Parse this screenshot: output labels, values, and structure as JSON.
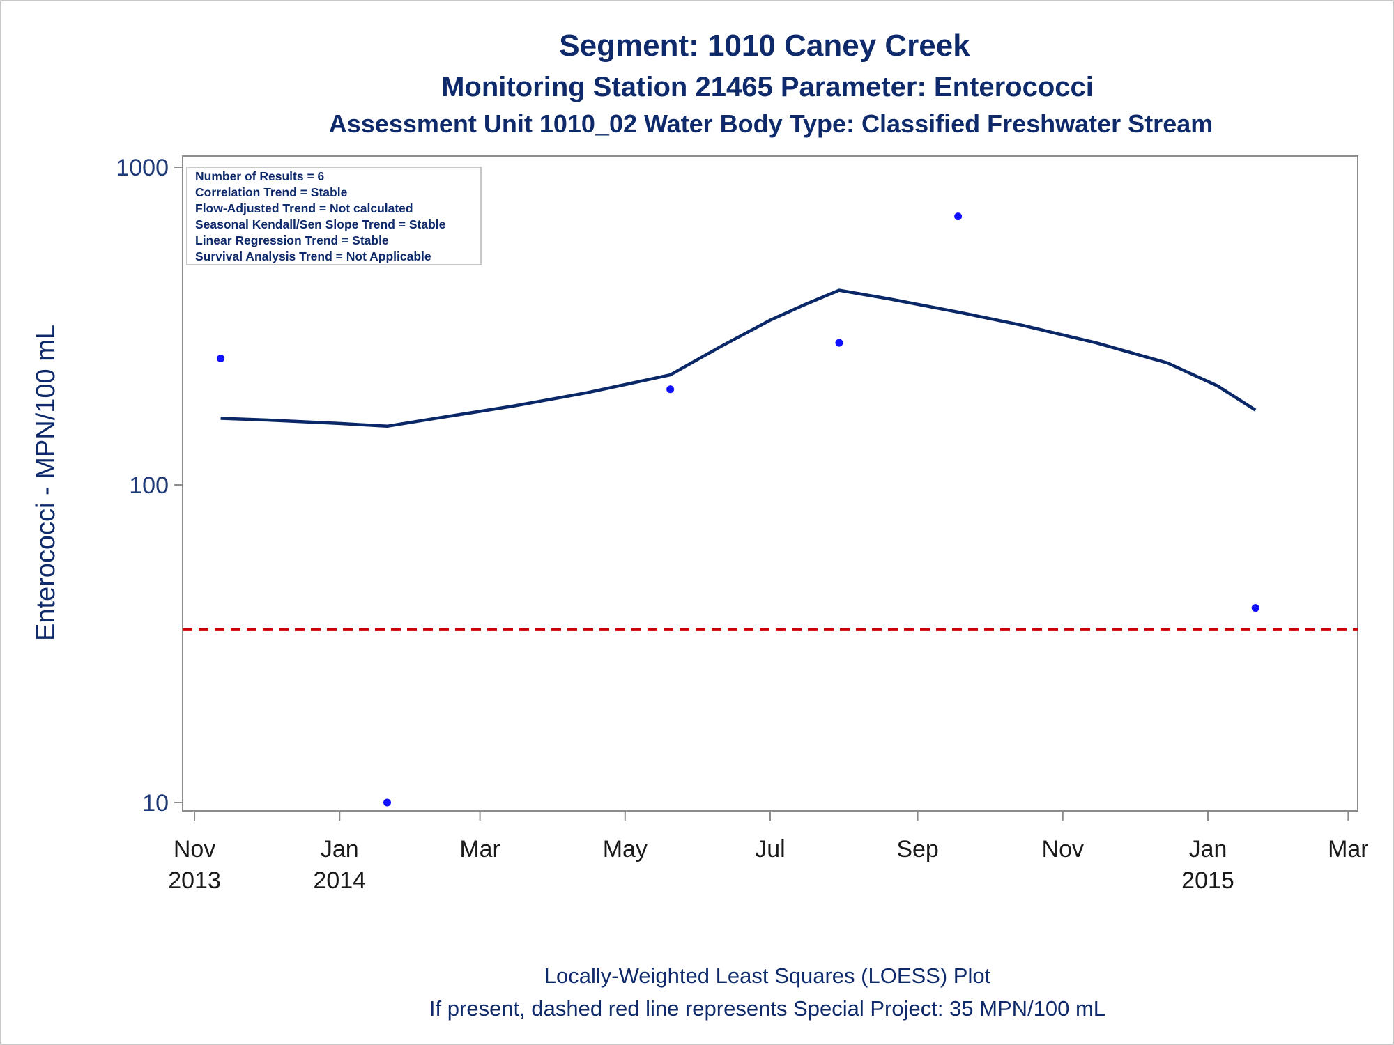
{
  "titles": [
    "Segment: 1010  Caney Creek",
    "Monitoring Station 21465 Parameter: Enterococci",
    "Assessment Unit 1010_02   Water Body Type: Classified Freshwater Stream"
  ],
  "stats_box": [
    "Number of Results = 6",
    "Correlation Trend = Stable",
    "Flow-Adjusted Trend = Not calculated",
    "Seasonal Kendall/Sen Slope Trend = Stable",
    "Linear Regression Trend = Stable",
    "Survival Analysis Trend = Not Applicable"
  ],
  "footnotes": [
    "Locally-Weighted Least Squares (LOESS) Plot",
    "If present, dashed red line represents Special Project: 35 MPN/100 mL"
  ],
  "colors": {
    "title": "#0f2a6b",
    "points": "#1010ff",
    "loess": "#0a2868",
    "reference": "#cc0000",
    "frame": "#8c8c8c"
  },
  "chart_data": {
    "type": "scatter",
    "ylabel": "Enterococci - MPN/100 mL",
    "yscale": "log",
    "ylim": [
      10,
      1000
    ],
    "yticks": [
      10,
      100,
      1000
    ],
    "xlim": [
      "2013-10-27",
      "2015-03-05"
    ],
    "xticks": [
      {
        "date": "2013-11-01",
        "label": [
          "Nov",
          "2013"
        ]
      },
      {
        "date": "2014-01-01",
        "label": [
          "Jan",
          "2014"
        ]
      },
      {
        "date": "2014-03-01",
        "label": [
          "Mar"
        ]
      },
      {
        "date": "2014-05-01",
        "label": [
          "May"
        ]
      },
      {
        "date": "2014-07-01",
        "label": [
          "Jul"
        ]
      },
      {
        "date": "2014-09-01",
        "label": [
          "Sep"
        ]
      },
      {
        "date": "2014-11-01",
        "label": [
          "Nov"
        ]
      },
      {
        "date": "2015-01-01",
        "label": [
          "Jan",
          "2015"
        ]
      },
      {
        "date": "2015-03-01",
        "label": [
          "Mar"
        ]
      }
    ],
    "points": [
      {
        "x": "2013-11-12",
        "y": 250
      },
      {
        "x": "2014-01-21",
        "y": 10
      },
      {
        "x": "2014-05-20",
        "y": 200
      },
      {
        "x": "2014-07-30",
        "y": 280
      },
      {
        "x": "2014-09-18",
        "y": 700
      },
      {
        "x": "2015-01-21",
        "y": 41
      }
    ],
    "loess": [
      {
        "x": "2013-11-12",
        "y": 162
      },
      {
        "x": "2013-12-01",
        "y": 160
      },
      {
        "x": "2014-01-01",
        "y": 156
      },
      {
        "x": "2014-01-21",
        "y": 153
      },
      {
        "x": "2014-02-15",
        "y": 164
      },
      {
        "x": "2014-03-15",
        "y": 177
      },
      {
        "x": "2014-04-15",
        "y": 195
      },
      {
        "x": "2014-05-20",
        "y": 222
      },
      {
        "x": "2014-06-10",
        "y": 272
      },
      {
        "x": "2014-07-01",
        "y": 330
      },
      {
        "x": "2014-07-15",
        "y": 368
      },
      {
        "x": "2014-07-30",
        "y": 410
      },
      {
        "x": "2014-08-20",
        "y": 385
      },
      {
        "x": "2014-09-18",
        "y": 350
      },
      {
        "x": "2014-10-15",
        "y": 318
      },
      {
        "x": "2014-11-15",
        "y": 280
      },
      {
        "x": "2014-12-15",
        "y": 242
      },
      {
        "x": "2015-01-05",
        "y": 205
      },
      {
        "x": "2015-01-21",
        "y": 172
      }
    ],
    "reference_line": {
      "y": 35
    }
  }
}
